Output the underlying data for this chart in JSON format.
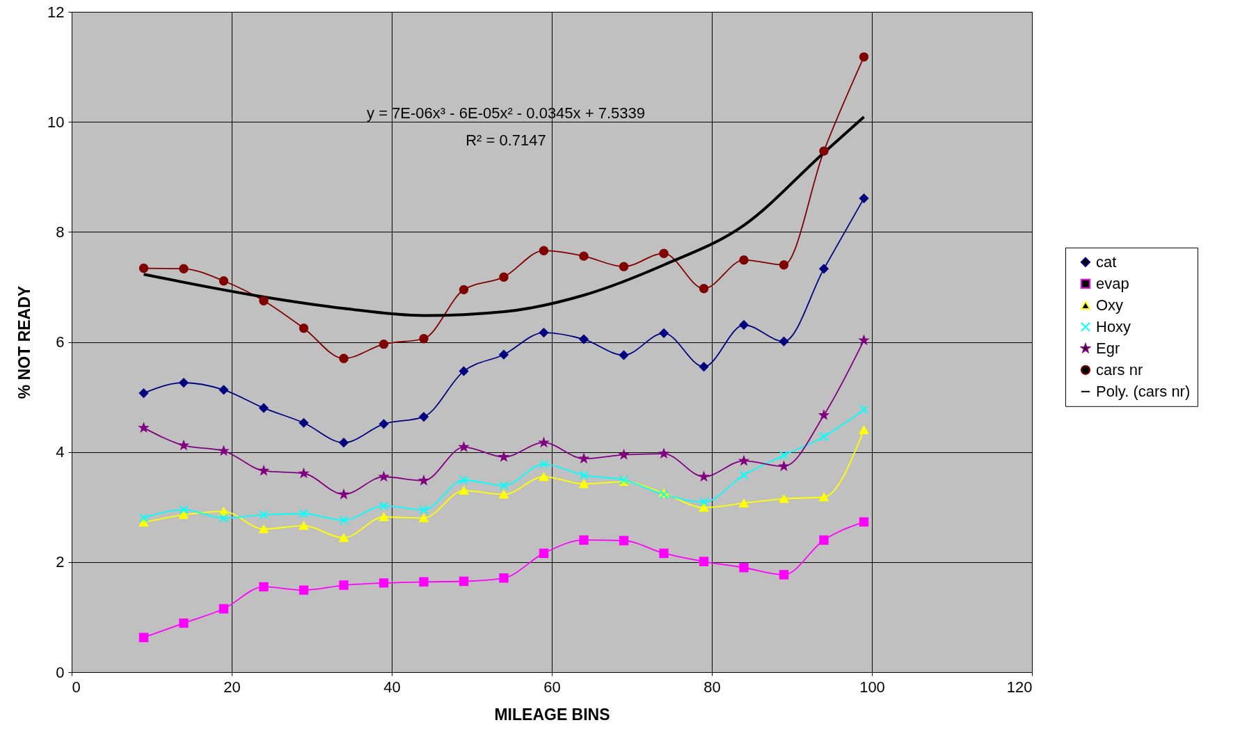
{
  "chart_data": {
    "type": "line",
    "xlabel": "MILEAGE BINS",
    "ylabel": "% NOT READY",
    "x": [
      9,
      14,
      19,
      24,
      29,
      34,
      39,
      44,
      49,
      54,
      59,
      64,
      69,
      74,
      79,
      84,
      89,
      94,
      99
    ],
    "series": [
      {
        "name": "cat",
        "color": "#000080",
        "marker": "diamond",
        "values": [
          5.07,
          5.26,
          5.13,
          4.8,
          4.53,
          4.17,
          4.51,
          4.64,
          5.47,
          5.77,
          6.17,
          6.05,
          5.76,
          6.16,
          5.55,
          6.31,
          6.01,
          7.33,
          8.61
        ]
      },
      {
        "name": "evap",
        "color": "#ff00ff",
        "marker": "square",
        "values": [
          0.63,
          0.89,
          1.15,
          1.55,
          1.49,
          1.58,
          1.62,
          1.64,
          1.65,
          1.71,
          2.16,
          2.4,
          2.39,
          2.16,
          2.01,
          1.9,
          1.77,
          2.4,
          2.73
        ]
      },
      {
        "name": "Oxy",
        "color": "#ffff00",
        "marker": "triangle",
        "values": [
          2.72,
          2.86,
          2.92,
          2.6,
          2.66,
          2.44,
          2.82,
          2.8,
          3.3,
          3.23,
          3.55,
          3.42,
          3.46,
          3.25,
          2.99,
          3.07,
          3.15,
          3.18,
          4.4
        ]
      },
      {
        "name": "Hoxy",
        "color": "#00ffff",
        "marker": "cross",
        "values": [
          2.8,
          2.95,
          2.8,
          2.86,
          2.88,
          2.76,
          3.02,
          2.95,
          3.49,
          3.39,
          3.78,
          3.58,
          3.49,
          3.23,
          3.09,
          3.58,
          3.94,
          4.28,
          4.77
        ]
      },
      {
        "name": "Egr",
        "color": "#800080",
        "marker": "star",
        "values": [
          4.44,
          4.12,
          4.02,
          3.66,
          3.61,
          3.23,
          3.55,
          3.48,
          4.09,
          3.91,
          4.17,
          3.88,
          3.95,
          3.97,
          3.55,
          3.84,
          3.74,
          4.67,
          6.03
        ]
      },
      {
        "name": "cars nr",
        "color": "#800000",
        "marker": "circle",
        "values": [
          7.34,
          7.33,
          7.11,
          6.75,
          6.25,
          5.7,
          5.96,
          6.06,
          6.95,
          7.18,
          7.66,
          7.56,
          7.37,
          7.61,
          6.97,
          7.49,
          7.4,
          9.47,
          11.18
        ]
      },
      {
        "name": "Poly. (cars nr)",
        "color": "#000000",
        "marker": "none",
        "x": [
          9,
          24,
          34,
          44,
          54,
          64,
          74,
          84,
          94,
          99
        ],
        "values": [
          7.23,
          6.82,
          6.61,
          6.48,
          6.55,
          6.85,
          7.4,
          8.12,
          9.44,
          10.09
        ]
      }
    ],
    "xlim": [
      0,
      120
    ],
    "xticks": [
      0,
      20,
      40,
      60,
      80,
      100,
      120
    ],
    "ylim": [
      0,
      12
    ],
    "yticks": [
      0,
      2,
      4,
      6,
      8,
      10,
      12
    ],
    "grid": true,
    "legend": "right",
    "annotations": [
      "y = 7E-06x³ - 6E-05x² - 0.0345x + 7.5339",
      "R² = 0.7147"
    ]
  }
}
